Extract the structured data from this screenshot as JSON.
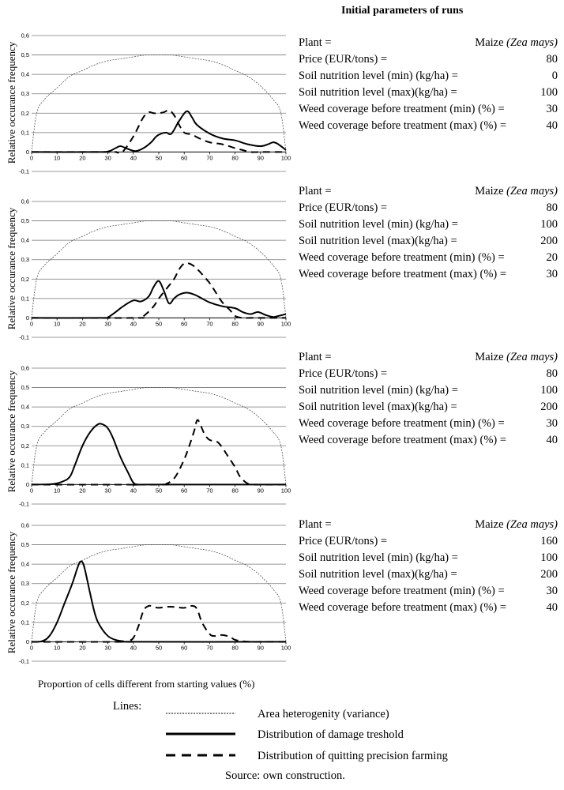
{
  "title": "Initial parameters of runs",
  "y_axis_label": "Relative occurance  frequency",
  "x_axis_label": "Proportion of cells different from starting values (%)",
  "chart_data": [
    {
      "type": "line",
      "ylim": [
        -0.1,
        0.6
      ],
      "xlim": [
        0,
        100
      ],
      "xticks": [
        0,
        10,
        20,
        30,
        40,
        50,
        60,
        70,
        80,
        90,
        100
      ],
      "yticks": [
        "-0,1",
        "0",
        "0,1",
        "0,2",
        "0,3",
        "0,4",
        "0,5",
        "0,6"
      ],
      "series": [
        {
          "name": "Area heterogenity (variance)",
          "style": "dotted",
          "x": [
            0,
            2,
            5,
            10,
            15,
            20,
            25,
            30,
            35,
            40,
            45,
            50,
            55,
            60,
            65,
            70,
            75,
            80,
            85,
            90,
            95,
            98,
            100
          ],
          "y": [
            0,
            0.2,
            0.27,
            0.33,
            0.39,
            0.42,
            0.45,
            0.47,
            0.48,
            0.49,
            0.5,
            0.5,
            0.5,
            0.49,
            0.48,
            0.47,
            0.45,
            0.42,
            0.39,
            0.34,
            0.27,
            0.2,
            0
          ]
        },
        {
          "name": "Distribution of damage treshold",
          "style": "solid",
          "x": [
            0,
            25,
            30,
            33,
            35,
            38,
            41,
            44,
            47,
            49,
            51,
            53,
            55,
            58,
            61,
            63,
            65,
            70,
            75,
            80,
            85,
            90,
            93,
            95,
            97,
            100
          ],
          "y": [
            0,
            0,
            0.003,
            0.02,
            0.03,
            0.015,
            0.005,
            0.02,
            0.05,
            0.08,
            0.095,
            0.1,
            0.095,
            0.16,
            0.21,
            0.18,
            0.14,
            0.095,
            0.07,
            0.06,
            0.04,
            0.03,
            0.04,
            0.05,
            0.04,
            0.01
          ]
        },
        {
          "name": "Distribution of quitting precision farming",
          "style": "dashed",
          "x": [
            0,
            30,
            33,
            35,
            37,
            40,
            42,
            44,
            46,
            48,
            50,
            52,
            54,
            56,
            58,
            60,
            63,
            66,
            70,
            75,
            80,
            83,
            86,
            90,
            100
          ],
          "y": [
            0,
            0,
            0,
            -0.005,
            0.02,
            0.08,
            0.13,
            0.18,
            0.205,
            0.2,
            0.2,
            0.205,
            0.215,
            0.19,
            0.14,
            0.1,
            0.09,
            0.07,
            0.05,
            0.04,
            0.02,
            0.01,
            0,
            0,
            0
          ]
        }
      ]
    },
    {
      "type": "line",
      "ylim": [
        -0.1,
        0.6
      ],
      "xlim": [
        0,
        100
      ],
      "xticks": [
        0,
        10,
        20,
        30,
        40,
        50,
        60,
        70,
        80,
        90,
        100
      ],
      "yticks": [
        "-0,1",
        "0",
        "0,1",
        "0,2",
        "0,3",
        "0,4",
        "0,5",
        "0,6"
      ],
      "series": [
        {
          "name": "Area heterogenity (variance)",
          "style": "dotted",
          "x": [
            0,
            2,
            5,
            10,
            15,
            20,
            25,
            30,
            35,
            40,
            45,
            50,
            55,
            60,
            65,
            70,
            75,
            80,
            85,
            90,
            95,
            98,
            100
          ],
          "y": [
            0,
            0.2,
            0.27,
            0.33,
            0.39,
            0.42,
            0.45,
            0.47,
            0.48,
            0.49,
            0.5,
            0.5,
            0.5,
            0.49,
            0.48,
            0.47,
            0.45,
            0.42,
            0.39,
            0.34,
            0.27,
            0.2,
            0
          ]
        },
        {
          "name": "Distribution of damage treshold",
          "style": "solid",
          "x": [
            0,
            28,
            30,
            33,
            36,
            40,
            43,
            46,
            48,
            50,
            52,
            54,
            56,
            58,
            61,
            64,
            67,
            70,
            75,
            80,
            83,
            86,
            89,
            92,
            95,
            97,
            100
          ],
          "y": [
            0,
            0,
            0.003,
            0.03,
            0.06,
            0.09,
            0.085,
            0.11,
            0.16,
            0.19,
            0.14,
            0.075,
            0.1,
            0.12,
            0.13,
            0.12,
            0.1,
            0.08,
            0.06,
            0.05,
            0.03,
            0.02,
            0.03,
            0.015,
            0.005,
            0.01,
            0.02
          ]
        },
        {
          "name": "Distribution of quitting precision farming",
          "style": "dashed",
          "x": [
            0,
            40,
            43,
            45,
            48,
            50,
            53,
            56,
            58,
            60,
            62,
            64,
            66,
            68,
            70,
            72,
            75,
            78,
            80,
            83,
            86,
            90,
            100
          ],
          "y": [
            0,
            0,
            0.003,
            0.02,
            0.06,
            0.1,
            0.15,
            0.2,
            0.25,
            0.28,
            0.28,
            0.265,
            0.24,
            0.21,
            0.18,
            0.14,
            0.08,
            0.04,
            0.01,
            0,
            0,
            0,
            0
          ]
        }
      ]
    },
    {
      "type": "line",
      "ylim": [
        -0.1,
        0.6
      ],
      "xlim": [
        0,
        100
      ],
      "xticks": [
        0,
        10,
        20,
        30,
        40,
        50,
        60,
        70,
        80,
        90,
        100
      ],
      "yticks": [
        "-0,1",
        "0",
        "0,1",
        "0,2",
        "0,3",
        "0,4",
        "0,5",
        "0,6"
      ],
      "series": [
        {
          "name": "Area heterogenity (variance)",
          "style": "dotted",
          "x": [
            0,
            2,
            5,
            10,
            15,
            20,
            25,
            30,
            35,
            40,
            45,
            50,
            55,
            60,
            65,
            70,
            75,
            80,
            85,
            90,
            95,
            98,
            100
          ],
          "y": [
            0,
            0.2,
            0.27,
            0.33,
            0.39,
            0.42,
            0.45,
            0.47,
            0.48,
            0.49,
            0.5,
            0.5,
            0.5,
            0.49,
            0.48,
            0.47,
            0.45,
            0.42,
            0.39,
            0.34,
            0.27,
            0.2,
            0
          ]
        },
        {
          "name": "Distribution of damage treshold",
          "style": "solid",
          "x": [
            0,
            8,
            12,
            15,
            17,
            20,
            23,
            26,
            28,
            30,
            32,
            35,
            38,
            40,
            42,
            45,
            100
          ],
          "y": [
            0,
            0.003,
            0.015,
            0.04,
            0.1,
            0.2,
            0.27,
            0.31,
            0.31,
            0.29,
            0.24,
            0.14,
            0.06,
            0.01,
            0,
            0,
            0
          ]
        },
        {
          "name": "Distribution of quitting precision farming",
          "style": "dashed",
          "x": [
            0,
            50,
            53,
            55,
            57,
            60,
            62,
            64,
            65,
            66,
            68,
            70,
            73,
            75,
            77,
            80,
            82,
            85,
            88,
            100
          ],
          "y": [
            0,
            0,
            0.005,
            0.02,
            0.05,
            0.13,
            0.2,
            0.28,
            0.33,
            0.32,
            0.26,
            0.23,
            0.22,
            0.19,
            0.15,
            0.09,
            0.04,
            0.005,
            0,
            0
          ]
        }
      ]
    },
    {
      "type": "line",
      "ylim": [
        -0.1,
        0.6
      ],
      "xlim": [
        0,
        100
      ],
      "xticks": [
        0,
        10,
        20,
        30,
        40,
        50,
        60,
        70,
        80,
        90,
        100
      ],
      "yticks": [
        "-0,1",
        "0",
        "0,1",
        "0,2",
        "0,3",
        "0,4",
        "0,5",
        "0,6"
      ],
      "series": [
        {
          "name": "Area heterogenity (variance)",
          "style": "dotted",
          "x": [
            0,
            2,
            5,
            10,
            15,
            20,
            25,
            30,
            35,
            40,
            45,
            50,
            55,
            60,
            65,
            70,
            75,
            80,
            85,
            90,
            95,
            98,
            100
          ],
          "y": [
            0,
            0.2,
            0.27,
            0.33,
            0.39,
            0.42,
            0.45,
            0.47,
            0.48,
            0.49,
            0.5,
            0.5,
            0.5,
            0.49,
            0.48,
            0.47,
            0.45,
            0.42,
            0.39,
            0.34,
            0.27,
            0.2,
            0
          ]
        },
        {
          "name": "Distribution of damage treshold",
          "style": "solid",
          "x": [
            0,
            4,
            7,
            10,
            13,
            16,
            18,
            19,
            20,
            21,
            23,
            25,
            27,
            30,
            33,
            36,
            40,
            100
          ],
          "y": [
            0,
            0.003,
            0.03,
            0.1,
            0.2,
            0.3,
            0.38,
            0.41,
            0.41,
            0.37,
            0.25,
            0.14,
            0.08,
            0.03,
            0.01,
            0.003,
            0,
            0
          ]
        },
        {
          "name": "Distribution of quitting precision farming",
          "style": "dashed",
          "x": [
            0,
            36,
            38,
            40,
            42,
            44,
            46,
            48,
            50,
            53,
            56,
            60,
            63,
            65,
            67,
            70,
            72,
            75,
            78,
            80,
            83,
            86,
            90,
            100
          ],
          "y": [
            0,
            0,
            0.005,
            0.02,
            0.08,
            0.16,
            0.185,
            0.18,
            0.175,
            0.18,
            0.18,
            0.175,
            0.185,
            0.17,
            0.1,
            0.04,
            0.03,
            0.035,
            0.025,
            0.01,
            0.003,
            0,
            0,
            0
          ]
        }
      ]
    }
  ],
  "panels": [
    {
      "rows": [
        {
          "label": "Plant =",
          "value": "Maize",
          "value_italic": "(Zea mays)"
        },
        {
          "label": "Price (EUR/tons) =",
          "value": "80"
        },
        {
          "label": "Soil nutrition level (min) (kg/ha) =",
          "value": "0"
        },
        {
          "label": "Soil nutrition level (max)(kg/ha) =",
          "value": "100"
        },
        {
          "label": "Weed coverage before treatment (min) (%) =",
          "value": "30"
        },
        {
          "label": "Weed coverage before treatment (max) (%) =",
          "value": "40"
        }
      ]
    },
    {
      "rows": [
        {
          "label": "Plant =",
          "value": "Maize",
          "value_italic": "(Zea mays)"
        },
        {
          "label": "Price (EUR/tons) =",
          "value": "80"
        },
        {
          "label": "Soil nutrition level (min) (kg/ha) =",
          "value": "100"
        },
        {
          "label": "Soil nutrition level (max)(kg/ha) =",
          "value": "200"
        },
        {
          "label": "Weed coverage before treatment  (min) (%) =",
          "value": "20"
        },
        {
          "label": "Weed coverage before treatment (max) (%) =",
          "value": "30"
        }
      ]
    },
    {
      "rows": [
        {
          "label": "Plant =",
          "value": "Maize",
          "value_italic": "(Zea mays)"
        },
        {
          "label": "Price (EUR/tons) =",
          "value": "80"
        },
        {
          "label": "Soil nutrition level (min) (kg/ha) =",
          "value": "100"
        },
        {
          "label": "Soil nutrition level (max)(kg/ha) =",
          "value": "200"
        },
        {
          "label": "Weed coverage before treatment (min) (%) =",
          "value": "30"
        },
        {
          "label": "Weed coverage before treatment (max) (%) =",
          "value": "40"
        }
      ]
    },
    {
      "rows": [
        {
          "label": "Plant =",
          "value": "Maize",
          "value_italic": "(Zea mays)"
        },
        {
          "label": "Price (EUR/tons) =",
          "value": "160"
        },
        {
          "label": "Soil nutrition level (min) (kg/ha) =",
          "value": "100"
        },
        {
          "label": "Soil nutrition level (max)(kg/ha) =",
          "value": "200"
        },
        {
          "label": "Weed coverage before treatment (min) (%) =",
          "value": "30"
        },
        {
          "label": "Weed coverage before treatment (max) (%) =",
          "value": "40"
        }
      ]
    }
  ],
  "legend": {
    "title": "Lines:",
    "items": [
      {
        "name": "Area heterogenity (variance)",
        "style": "dotted"
      },
      {
        "name": "Distribution of damage treshold",
        "style": "solid"
      },
      {
        "name": "Distribution of quitting precision farming",
        "style": "dashed"
      }
    ]
  },
  "source": "Source: own construction."
}
